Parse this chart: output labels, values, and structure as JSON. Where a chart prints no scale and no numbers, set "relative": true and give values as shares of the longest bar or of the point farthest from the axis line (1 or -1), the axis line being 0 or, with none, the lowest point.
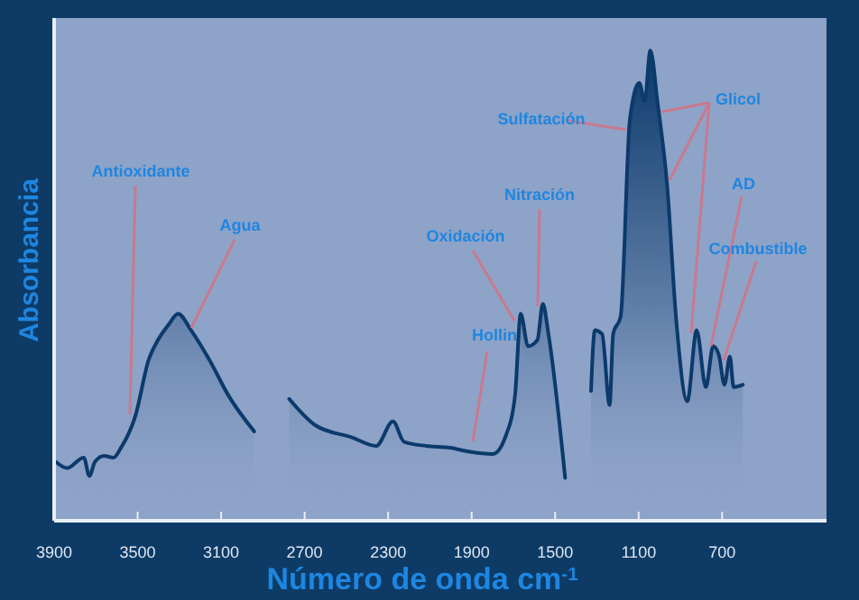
{
  "chart_data": {
    "type": "area",
    "xlabel": "Número de onda cm$^{-1}$",
    "ylabel": "Absorbancia",
    "relative": true,
    "xlim": [
      3900,
      200
    ],
    "xticks": [
      3900,
      3500,
      3100,
      2700,
      2300,
      1900,
      1500,
      1100,
      700
    ],
    "grid": false,
    "series": [
      {
        "color": "#0b3a6b",
        "x": [
          3891,
          3838,
          3758,
          3731,
          3705,
          3661,
          3616,
          3580,
          3510,
          3448,
          3403,
          3350,
          3306,
          3244,
          3155,
          3066,
          2942,
          2860,
          2774,
          2649,
          2472,
          2357,
          2277,
          2224,
          2117,
          2002,
          1913,
          1798,
          1736,
          1692,
          1665,
          1630,
          1585,
          1559,
          1532,
          1452,
          1390,
          1328,
          1310,
          1275,
          1239,
          1222,
          1186,
          1142,
          1097,
          1071,
          1044,
          1009,
          964,
          920,
          867,
          822,
          778,
          743,
          716,
          689,
          663,
          645,
          601
        ],
        "values": [
          0.125,
          0.112,
          0.134,
          0.095,
          0.125,
          0.138,
          0.134,
          0.155,
          0.224,
          0.341,
          0.384,
          0.418,
          0.44,
          0.405,
          0.341,
          0.267,
          0.19,
          null,
          0.259,
          0.203,
          0.177,
          0.159,
          0.211,
          0.168,
          0.159,
          0.155,
          0.147,
          0.142,
          0.181,
          0.267,
          0.44,
          0.371,
          0.384,
          0.461,
          0.397,
          0.091,
          null,
          0.276,
          0.405,
          0.397,
          0.246,
          0.397,
          0.435,
          0.853,
          0.931,
          0.892,
          1,
          0.888,
          0.716,
          0.427,
          0.254,
          0.405,
          0.284,
          0.371,
          0.353,
          0.289,
          0.349,
          0.284,
          0.289
        ]
      }
    ],
    "annotations": [
      "Antioxidante",
      "Agua",
      "Hollin",
      "Oxidación",
      "Nitración",
      "Sulfatación",
      "Glicol",
      "AD",
      "Combustible"
    ]
  }
}
